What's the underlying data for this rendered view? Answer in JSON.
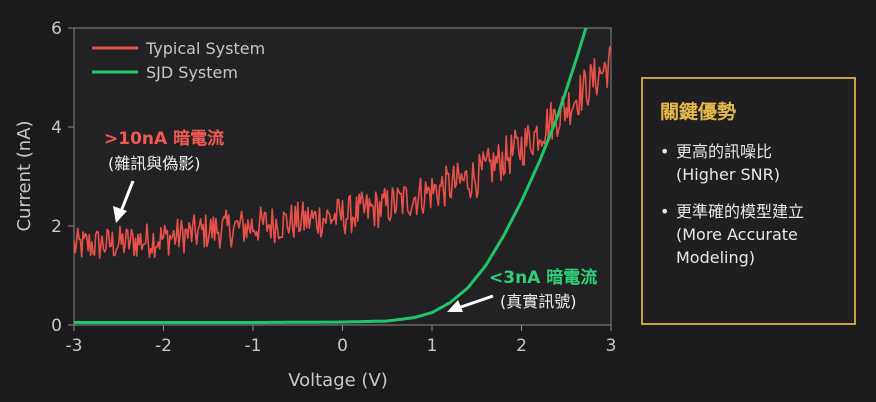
{
  "chart_data": {
    "type": "line",
    "xlabel": "Voltage (V)",
    "ylabel": "Current (nA)",
    "xlim": [
      -3,
      3
    ],
    "ylim": [
      0,
      6
    ],
    "xticks": [
      -3,
      -2,
      -1,
      0,
      1,
      2,
      3
    ],
    "yticks": [
      0,
      2,
      4,
      6
    ],
    "legend_position": "top-left",
    "grid": false,
    "series": [
      {
        "name": "Typical System",
        "color": "#e8504a",
        "style": "noisy",
        "x": [
          -3.0,
          -2.5,
          -2.0,
          -1.5,
          -1.0,
          -0.5,
          0.0,
          0.5,
          1.0,
          1.5,
          2.0,
          2.5,
          3.0
        ],
        "y": [
          1.6,
          1.65,
          1.75,
          1.9,
          2.0,
          2.1,
          2.2,
          2.4,
          2.7,
          3.0,
          3.6,
          4.4,
          5.3
        ]
      },
      {
        "name": "SJD System",
        "color": "#22c468",
        "style": "smooth",
        "x": [
          -3.0,
          -1.0,
          0.0,
          0.5,
          0.8,
          1.0,
          1.2,
          1.4,
          1.6,
          1.8,
          2.0,
          2.2,
          2.4,
          2.6,
          2.72
        ],
        "y": [
          0.05,
          0.05,
          0.06,
          0.08,
          0.15,
          0.25,
          0.45,
          0.75,
          1.2,
          1.8,
          2.5,
          3.3,
          4.2,
          5.3,
          6.0
        ]
      }
    ],
    "annotations": {
      "typical_main": ">10nA 暗電流",
      "typical_sub": "(雜訊與偽影)",
      "sjd_main": "<3nA 暗電流",
      "sjd_sub": "(真實訊號)"
    }
  },
  "side_panel": {
    "title": "關鍵優勢",
    "bullet": "•",
    "items": [
      {
        "lines": [
          "更高的訊噪比",
          "(Higher SNR)"
        ]
      },
      {
        "lines": [
          "更準確的模型建立",
          "(More Accurate",
          "Modeling)"
        ]
      }
    ]
  }
}
